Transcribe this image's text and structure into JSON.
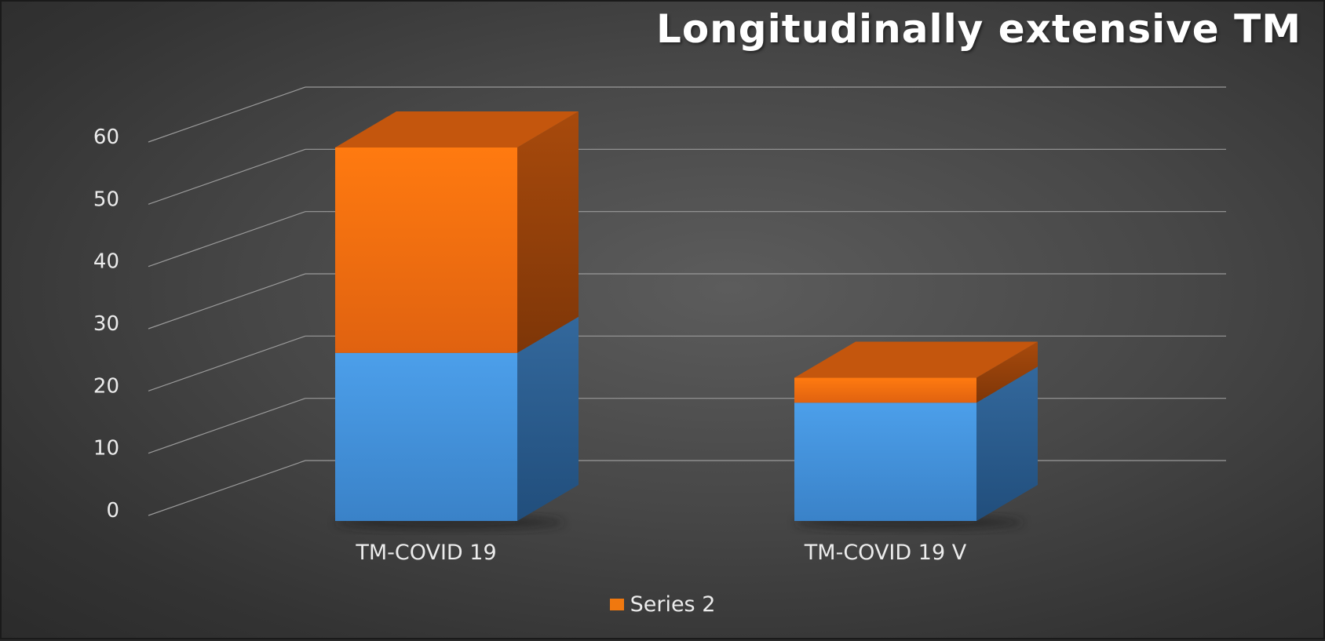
{
  "chart_data": {
    "type": "bar",
    "stacked": true,
    "three_d": true,
    "title": "Longitudinally extensive TM",
    "categories": [
      "TM-COVID 19",
      "TM-COVID 19 V"
    ],
    "series": [
      {
        "values": [
          27,
          19
        ],
        "color": "#4a9be8"
      },
      {
        "name": "Series 2",
        "values": [
          33,
          4
        ],
        "color": "#f0780f"
      }
    ],
    "ylim": [
      0,
      60
    ],
    "yticks": [
      0,
      10,
      20,
      30,
      40,
      50,
      60
    ],
    "grid": true,
    "legend": "bottom"
  }
}
